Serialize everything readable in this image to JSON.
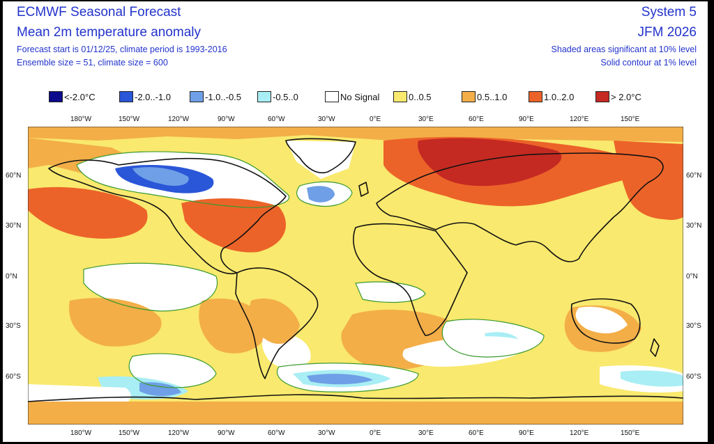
{
  "header": {
    "title": "ECMWF Seasonal Forecast",
    "subtitle": "Mean 2m temperature anomaly",
    "forecast_info": "Forecast start is 01/12/25, climate period is 1993-2016",
    "ensemble_info": "Ensemble size = 51, climate size = 600",
    "system": "System 5",
    "season": "JFM 2026",
    "shaded_note": "Shaded areas significant at 10% level",
    "contour_note": "Solid contour at 1% level"
  },
  "legend": [
    {
      "label": "<-2.0°C",
      "color": "#0b0b8c"
    },
    {
      "label": "-2.0..-1.0",
      "color": "#2a56d8"
    },
    {
      "label": "-1.0..-0.5",
      "color": "#6f9fe6"
    },
    {
      "label": "-0.5..0",
      "color": "#a8eef4"
    },
    {
      "label": "No Signal",
      "color": "#ffffff"
    },
    {
      "label": "0..0.5",
      "color": "#f9e96e"
    },
    {
      "label": "0.5..1.0",
      "color": "#f3ae48"
    },
    {
      "label": "1.0..2.0",
      "color": "#ec6329"
    },
    {
      "label": "> 2.0°C",
      "color": "#c42a22"
    }
  ],
  "axes": {
    "lon_labels": [
      "180°W",
      "150°W",
      "120°W",
      "90°W",
      "60°W",
      "30°W",
      "0°E",
      "30°E",
      "60°E",
      "90°E",
      "120°E",
      "150°E"
    ],
    "lat_labels": [
      "60°N",
      "30°N",
      "0°N",
      "30°S",
      "60°S"
    ]
  },
  "colors": {
    "contour": "#3a9a2e",
    "coast": "#111111"
  }
}
